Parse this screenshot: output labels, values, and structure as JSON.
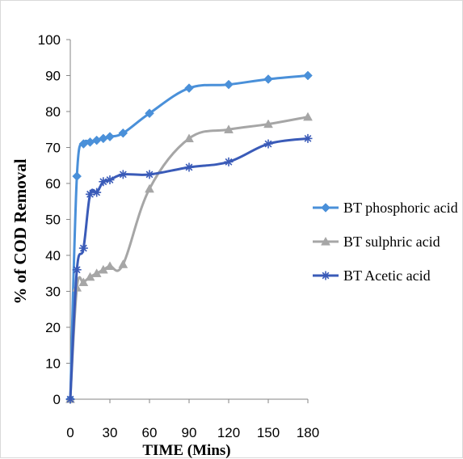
{
  "chart_data": {
    "type": "line",
    "xlabel": "TIME (Mins)",
    "ylabel": "% of COD Removal",
    "xlim": [
      0,
      180
    ],
    "ylim": [
      0,
      100
    ],
    "x_ticks": [
      0,
      30,
      60,
      90,
      120,
      150,
      180
    ],
    "y_ticks": [
      0,
      10,
      20,
      30,
      40,
      50,
      60,
      70,
      80,
      90,
      100
    ],
    "grid": false,
    "legend_position": "right",
    "series": [
      {
        "name": "BT phosphoric acid",
        "color": "#4A90D9",
        "marker": "diamond",
        "x": [
          0,
          5,
          10,
          15,
          20,
          25,
          30,
          40,
          60,
          90,
          120,
          150,
          180
        ],
        "y": [
          0,
          62,
          71,
          71.5,
          72,
          72.5,
          73,
          74,
          79.5,
          86.5,
          87.5,
          89,
          90
        ]
      },
      {
        "name": "BT sulphric acid",
        "color": "#A6A6A6",
        "marker": "triangle",
        "x": [
          0,
          5,
          10,
          15,
          20,
          25,
          30,
          40,
          60,
          90,
          120,
          150,
          180
        ],
        "y": [
          0,
          31,
          32.5,
          34,
          35,
          36,
          37,
          37.5,
          58.5,
          72.5,
          75,
          76.5,
          78.5
        ]
      },
      {
        "name": "BT Acetic acid",
        "color": "#3A5BB8",
        "marker": "asterisk",
        "x": [
          0,
          5,
          10,
          15,
          20,
          25,
          30,
          40,
          60,
          90,
          120,
          150,
          180
        ],
        "y": [
          0,
          36,
          42,
          57,
          57.5,
          60.5,
          61,
          62.5,
          62.5,
          64.5,
          66,
          71,
          72.5
        ]
      }
    ]
  }
}
